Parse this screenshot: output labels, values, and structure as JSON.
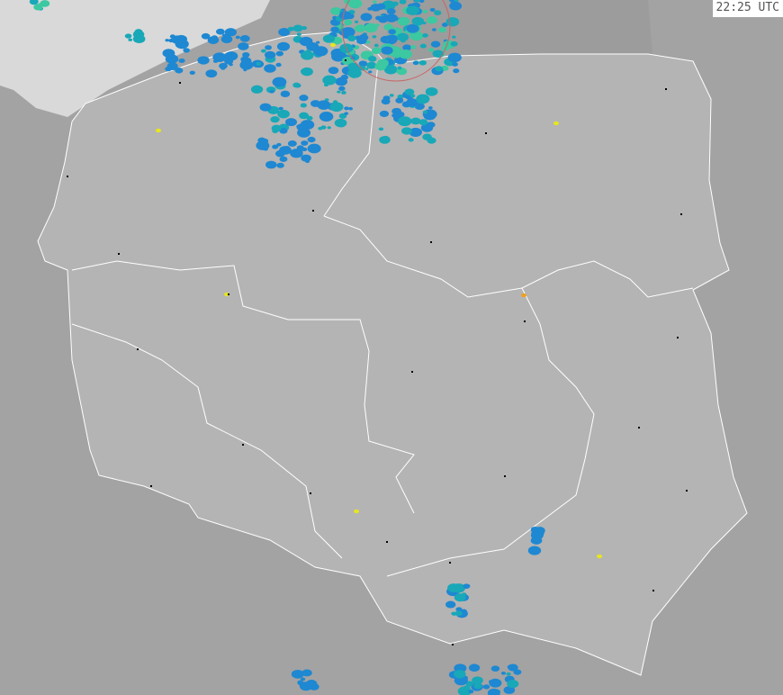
{
  "overlay": {
    "timestamp": "22:25 UTC"
  },
  "map": {
    "type": "weather-radar",
    "region": "Poland",
    "colors": {
      "country_fill": "#b4b4b4",
      "neighbor_fill": "#a3a3a3",
      "sea_fill": "#d9d9d9",
      "border": "#ffffff",
      "city": "#000000",
      "radar_light": "#1e88d2",
      "radar_mid": "#18a8b8",
      "radar_strong": "#3cc8a0",
      "radar_heavy": "#e6e61e",
      "radar_extreme": "#f0a020"
    }
  }
}
